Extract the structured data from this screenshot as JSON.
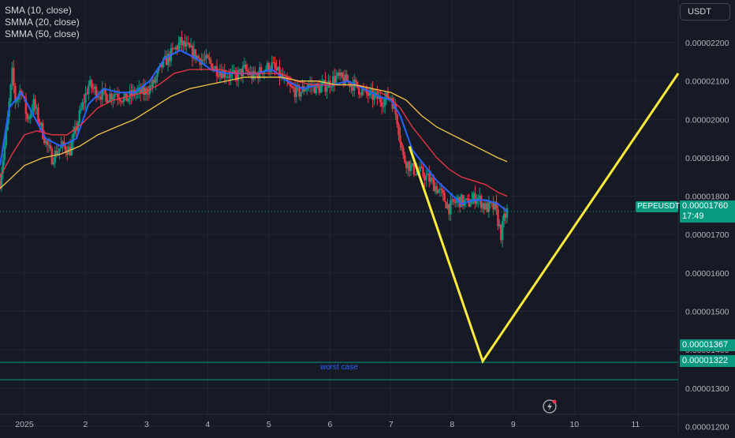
{
  "legend": {
    "items": [
      {
        "label": "SMA (10, close)",
        "color": "#2962ff"
      },
      {
        "label": "SMMA (20, close)",
        "color": "#f23645"
      },
      {
        "label": "SMMA (50, close)",
        "color": "#f7c548"
      }
    ]
  },
  "currency_button": "USDT",
  "symbol_tag": "PEPEUSDT",
  "last_price": {
    "value": "0.00001760",
    "countdown": "17:49"
  },
  "level_tags": [
    "0.00001367",
    "0.00001322"
  ],
  "worst_case_label": "worst case",
  "colors": {
    "background": "#161a25",
    "grid": "#232632",
    "up": "#089981",
    "down": "#f23645",
    "sma10": "#2962ff",
    "smma20": "#f23645",
    "smma50": "#f7c548",
    "projection": "#ffeb3b",
    "level_line": "#089981"
  },
  "icons": {
    "replay": "lightning-icon"
  },
  "chart_data": {
    "type": "candlestick",
    "symbol": "PEPEUSDT",
    "x_ticks": [
      "2025",
      "2",
      "3",
      "4",
      "5",
      "6",
      "7",
      "8",
      "9",
      "10",
      "11"
    ],
    "y_ticks": [
      "0.00001200",
      "0.00001300",
      "0.00001400",
      "0.00001500",
      "0.00001600",
      "0.00001700",
      "0.00001800",
      "0.00001900",
      "0.00002000",
      "0.00002100",
      "0.00002200"
    ],
    "ylim": [
      1.17e-05,
      2.27e-05
    ],
    "xlim": [
      0.6,
      11.7
    ],
    "price_path": [
      [
        0.6,
        1.84e-05
      ],
      [
        0.7,
        1.96e-05
      ],
      [
        0.8,
        2.12e-05
      ],
      [
        0.85,
        2.05e-05
      ],
      [
        0.95,
        2.08e-05
      ],
      [
        1.05,
        2e-05
      ],
      [
        1.15,
        2.04e-05
      ],
      [
        1.25,
        1.99e-05
      ],
      [
        1.35,
        1.94e-05
      ],
      [
        1.45,
        1.9e-05
      ],
      [
        1.6,
        1.93e-05
      ],
      [
        1.75,
        1.92e-05
      ],
      [
        1.9,
        2.01e-05
      ],
      [
        2.05,
        2.09e-05
      ],
      [
        2.2,
        2.07e-05
      ],
      [
        2.35,
        2.06e-05
      ],
      [
        2.5,
        2.07e-05
      ],
      [
        2.65,
        2.05e-05
      ],
      [
        2.8,
        2.07e-05
      ],
      [
        2.95,
        2.07e-05
      ],
      [
        3.1,
        2.09e-05
      ],
      [
        3.25,
        2.14e-05
      ],
      [
        3.4,
        2.17e-05
      ],
      [
        3.55,
        2.2e-05
      ],
      [
        3.7,
        2.18e-05
      ],
      [
        3.85,
        2.16e-05
      ],
      [
        4.0,
        2.15e-05
      ],
      [
        4.15,
        2.13e-05
      ],
      [
        4.3,
        2.12e-05
      ],
      [
        4.45,
        2.11e-05
      ],
      [
        4.6,
        2.13e-05
      ],
      [
        4.75,
        2.11e-05
      ],
      [
        4.9,
        2.13e-05
      ],
      [
        5.05,
        2.14e-05
      ],
      [
        5.2,
        2.11e-05
      ],
      [
        5.35,
        2.08e-05
      ],
      [
        5.5,
        2.07e-05
      ],
      [
        5.65,
        2.09e-05
      ],
      [
        5.8,
        2.08e-05
      ],
      [
        5.95,
        2.09e-05
      ],
      [
        6.1,
        2.11e-05
      ],
      [
        6.25,
        2.1e-05
      ],
      [
        6.4,
        2.09e-05
      ],
      [
        6.55,
        2.07e-05
      ],
      [
        6.7,
        2.06e-05
      ],
      [
        6.85,
        2.05e-05
      ],
      [
        7.0,
        2.06e-05
      ],
      [
        7.1,
        2e-05
      ],
      [
        7.2,
        1.9e-05
      ],
      [
        7.35,
        1.87e-05
      ],
      [
        7.5,
        1.86e-05
      ],
      [
        7.65,
        1.84e-05
      ],
      [
        7.8,
        1.81e-05
      ],
      [
        7.95,
        1.77e-05
      ],
      [
        8.1,
        1.79e-05
      ],
      [
        8.25,
        1.78e-05
      ],
      [
        8.4,
        1.8e-05
      ],
      [
        8.55,
        1.77e-05
      ],
      [
        8.7,
        1.77e-05
      ],
      [
        8.8,
        1.7e-05
      ],
      [
        8.85,
        1.74e-05
      ],
      [
        8.9,
        1.76e-05
      ]
    ],
    "series": [
      {
        "name": "SMA (10, close)",
        "color": "#2962ff",
        "points": [
          [
            0.6,
            1.88e-05
          ],
          [
            0.75,
            2.03e-05
          ],
          [
            0.95,
            2.07e-05
          ],
          [
            1.15,
            2.01e-05
          ],
          [
            1.35,
            1.95e-05
          ],
          [
            1.6,
            1.93e-05
          ],
          [
            1.85,
            1.95e-05
          ],
          [
            2.05,
            2.04e-05
          ],
          [
            2.3,
            2.08e-05
          ],
          [
            2.55,
            2.07e-05
          ],
          [
            2.8,
            2.07e-05
          ],
          [
            3.05,
            2.1e-05
          ],
          [
            3.3,
            2.16e-05
          ],
          [
            3.55,
            2.18e-05
          ],
          [
            3.8,
            2.16e-05
          ],
          [
            4.05,
            2.13e-05
          ],
          [
            4.3,
            2.12e-05
          ],
          [
            4.55,
            2.12e-05
          ],
          [
            4.8,
            2.12e-05
          ],
          [
            5.05,
            2.13e-05
          ],
          [
            5.3,
            2.1e-05
          ],
          [
            5.55,
            2.08e-05
          ],
          [
            5.8,
            2.09e-05
          ],
          [
            6.05,
            2.09e-05
          ],
          [
            6.3,
            2.1e-05
          ],
          [
            6.55,
            2.08e-05
          ],
          [
            6.8,
            2.06e-05
          ],
          [
            7.0,
            2.05e-05
          ],
          [
            7.15,
            2.01e-05
          ],
          [
            7.35,
            1.92e-05
          ],
          [
            7.55,
            1.88e-05
          ],
          [
            7.75,
            1.84e-05
          ],
          [
            7.95,
            1.81e-05
          ],
          [
            8.15,
            1.78e-05
          ],
          [
            8.35,
            1.79e-05
          ],
          [
            8.55,
            1.79e-05
          ],
          [
            8.75,
            1.78e-05
          ],
          [
            8.9,
            1.76e-05
          ]
        ]
      },
      {
        "name": "SMMA (20, close)",
        "color": "#f23645",
        "points": [
          [
            0.6,
            1.85e-05
          ],
          [
            0.8,
            1.91e-05
          ],
          [
            1.0,
            1.96e-05
          ],
          [
            1.2,
            1.97e-05
          ],
          [
            1.45,
            1.96e-05
          ],
          [
            1.7,
            1.96e-05
          ],
          [
            1.95,
            1.99e-05
          ],
          [
            2.2,
            2.03e-05
          ],
          [
            2.45,
            2.05e-05
          ],
          [
            2.7,
            2.06e-05
          ],
          [
            2.95,
            2.07e-05
          ],
          [
            3.2,
            2.09e-05
          ],
          [
            3.45,
            2.12e-05
          ],
          [
            3.7,
            2.13e-05
          ],
          [
            3.95,
            2.13e-05
          ],
          [
            4.2,
            2.13e-05
          ],
          [
            4.45,
            2.12e-05
          ],
          [
            4.7,
            2.12e-05
          ],
          [
            4.95,
            2.12e-05
          ],
          [
            5.2,
            2.12e-05
          ],
          [
            5.45,
            2.1e-05
          ],
          [
            5.7,
            2.09e-05
          ],
          [
            5.95,
            2.09e-05
          ],
          [
            6.2,
            2.09e-05
          ],
          [
            6.45,
            2.09e-05
          ],
          [
            6.7,
            2.08e-05
          ],
          [
            6.95,
            2.06e-05
          ],
          [
            7.15,
            2.03e-05
          ],
          [
            7.35,
            1.98e-05
          ],
          [
            7.55,
            1.94e-05
          ],
          [
            7.75,
            1.9e-05
          ],
          [
            7.95,
            1.87e-05
          ],
          [
            8.15,
            1.85e-05
          ],
          [
            8.35,
            1.84e-05
          ],
          [
            8.55,
            1.83e-05
          ],
          [
            8.75,
            1.81e-05
          ],
          [
            8.9,
            1.8e-05
          ]
        ]
      },
      {
        "name": "SMMA (50, close)",
        "color": "#f7c548",
        "points": [
          [
            0.6,
            1.82e-05
          ],
          [
            0.8,
            1.85e-05
          ],
          [
            1.0,
            1.88e-05
          ],
          [
            1.3,
            1.9e-05
          ],
          [
            1.6,
            1.91e-05
          ],
          [
            1.9,
            1.93e-05
          ],
          [
            2.2,
            1.96e-05
          ],
          [
            2.5,
            1.98e-05
          ],
          [
            2.8,
            2e-05
          ],
          [
            3.1,
            2.03e-05
          ],
          [
            3.4,
            2.06e-05
          ],
          [
            3.7,
            2.08e-05
          ],
          [
            4.0,
            2.09e-05
          ],
          [
            4.3,
            2.1e-05
          ],
          [
            4.6,
            2.11e-05
          ],
          [
            4.9,
            2.11e-05
          ],
          [
            5.2,
            2.11e-05
          ],
          [
            5.5,
            2.1e-05
          ],
          [
            5.8,
            2.1e-05
          ],
          [
            6.1,
            2.09e-05
          ],
          [
            6.4,
            2.09e-05
          ],
          [
            6.7,
            2.08e-05
          ],
          [
            7.0,
            2.07e-05
          ],
          [
            7.25,
            2.05e-05
          ],
          [
            7.5,
            2.01e-05
          ],
          [
            7.75,
            1.98e-05
          ],
          [
            8.0,
            1.96e-05
          ],
          [
            8.25,
            1.94e-05
          ],
          [
            8.5,
            1.92e-05
          ],
          [
            8.75,
            1.9e-05
          ],
          [
            8.9,
            1.89e-05
          ]
        ]
      }
    ],
    "levels": [
      {
        "price": 1.367e-05,
        "color": "#089981"
      },
      {
        "price": 1.322e-05,
        "color": "#089981"
      }
    ],
    "dotted_last_price": 1.76e-05,
    "projection": {
      "color": "#ffeb3b",
      "points": [
        [
          7.3,
          1.93e-05
        ],
        [
          8.5,
          1.37e-05
        ],
        [
          11.7,
          2.12e-05
        ]
      ]
    }
  }
}
